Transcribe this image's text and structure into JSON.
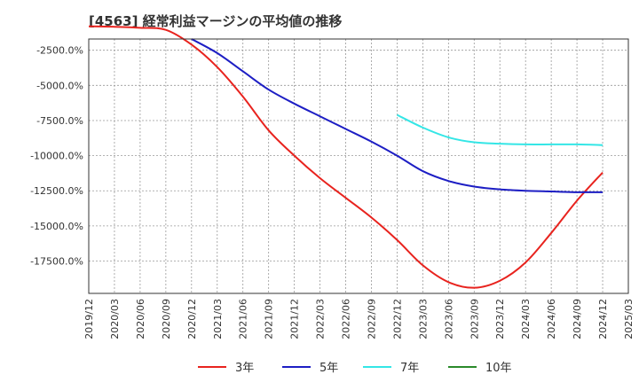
{
  "chart_data": {
    "type": "line",
    "title": "[4563]  経常利益マージンの平均値の推移",
    "xlabel": "",
    "ylabel": "",
    "x": [
      "2019/12",
      "2020/03",
      "2020/06",
      "2020/09",
      "2020/12",
      "2021/03",
      "2021/06",
      "2021/09",
      "2021/12",
      "2022/03",
      "2022/06",
      "2022/09",
      "2022/12",
      "2023/03",
      "2023/06",
      "2023/09",
      "2023/12",
      "2024/03",
      "2024/06",
      "2024/09",
      "2024/12"
    ],
    "x_ticks": [
      "2019/12",
      "2020/03",
      "2020/06",
      "2020/09",
      "2020/12",
      "2021/03",
      "2021/06",
      "2021/09",
      "2021/12",
      "2022/03",
      "2022/06",
      "2022/09",
      "2022/12",
      "2023/03",
      "2023/06",
      "2023/09",
      "2023/12",
      "2024/03",
      "2024/06",
      "2024/09",
      "2024/12",
      "2025/03"
    ],
    "y_ticks": [
      -2500,
      -5000,
      -7500,
      -10000,
      -12500,
      -15000,
      -17500
    ],
    "y_tick_labels": [
      "-2500.0%",
      "-5000.0%",
      "-7500.0%",
      "-10000.0%",
      "-12500.0%",
      "-15000.0%",
      "-17500.0%"
    ],
    "ylim": [
      -19800,
      -1700
    ],
    "grid": true,
    "legend_position": "bottom",
    "series": [
      {
        "name": "3年",
        "color": "#e8231e",
        "values": [
          -800,
          -830,
          -900,
          -1050,
          -2100,
          -3700,
          -5800,
          -8200,
          -10000,
          -11600,
          -13000,
          -14400,
          -16000,
          -17800,
          -19000,
          -19400,
          -18900,
          -17600,
          -15500,
          -13200,
          -11200
        ]
      },
      {
        "name": "5年",
        "color": "#1d1ec4",
        "values": [
          null,
          null,
          null,
          null,
          -1700,
          -2700,
          -4000,
          -5300,
          -6300,
          -7200,
          -8100,
          -9000,
          -10000,
          -11100,
          -11800,
          -12200,
          -12400,
          -12500,
          -12550,
          -12600,
          -12600
        ]
      },
      {
        "name": "7年",
        "color": "#34e6e6",
        "values": [
          null,
          null,
          null,
          null,
          null,
          null,
          null,
          null,
          null,
          null,
          null,
          null,
          -7100,
          -8000,
          -8700,
          -9050,
          -9150,
          -9200,
          -9200,
          -9200,
          -9250
        ]
      },
      {
        "name": "10年",
        "color": "#2a8a2a",
        "values": [
          null,
          null,
          null,
          null,
          null,
          null,
          null,
          null,
          null,
          null,
          null,
          null,
          null,
          null,
          null,
          null,
          null,
          null,
          null,
          null,
          null
        ]
      }
    ]
  }
}
